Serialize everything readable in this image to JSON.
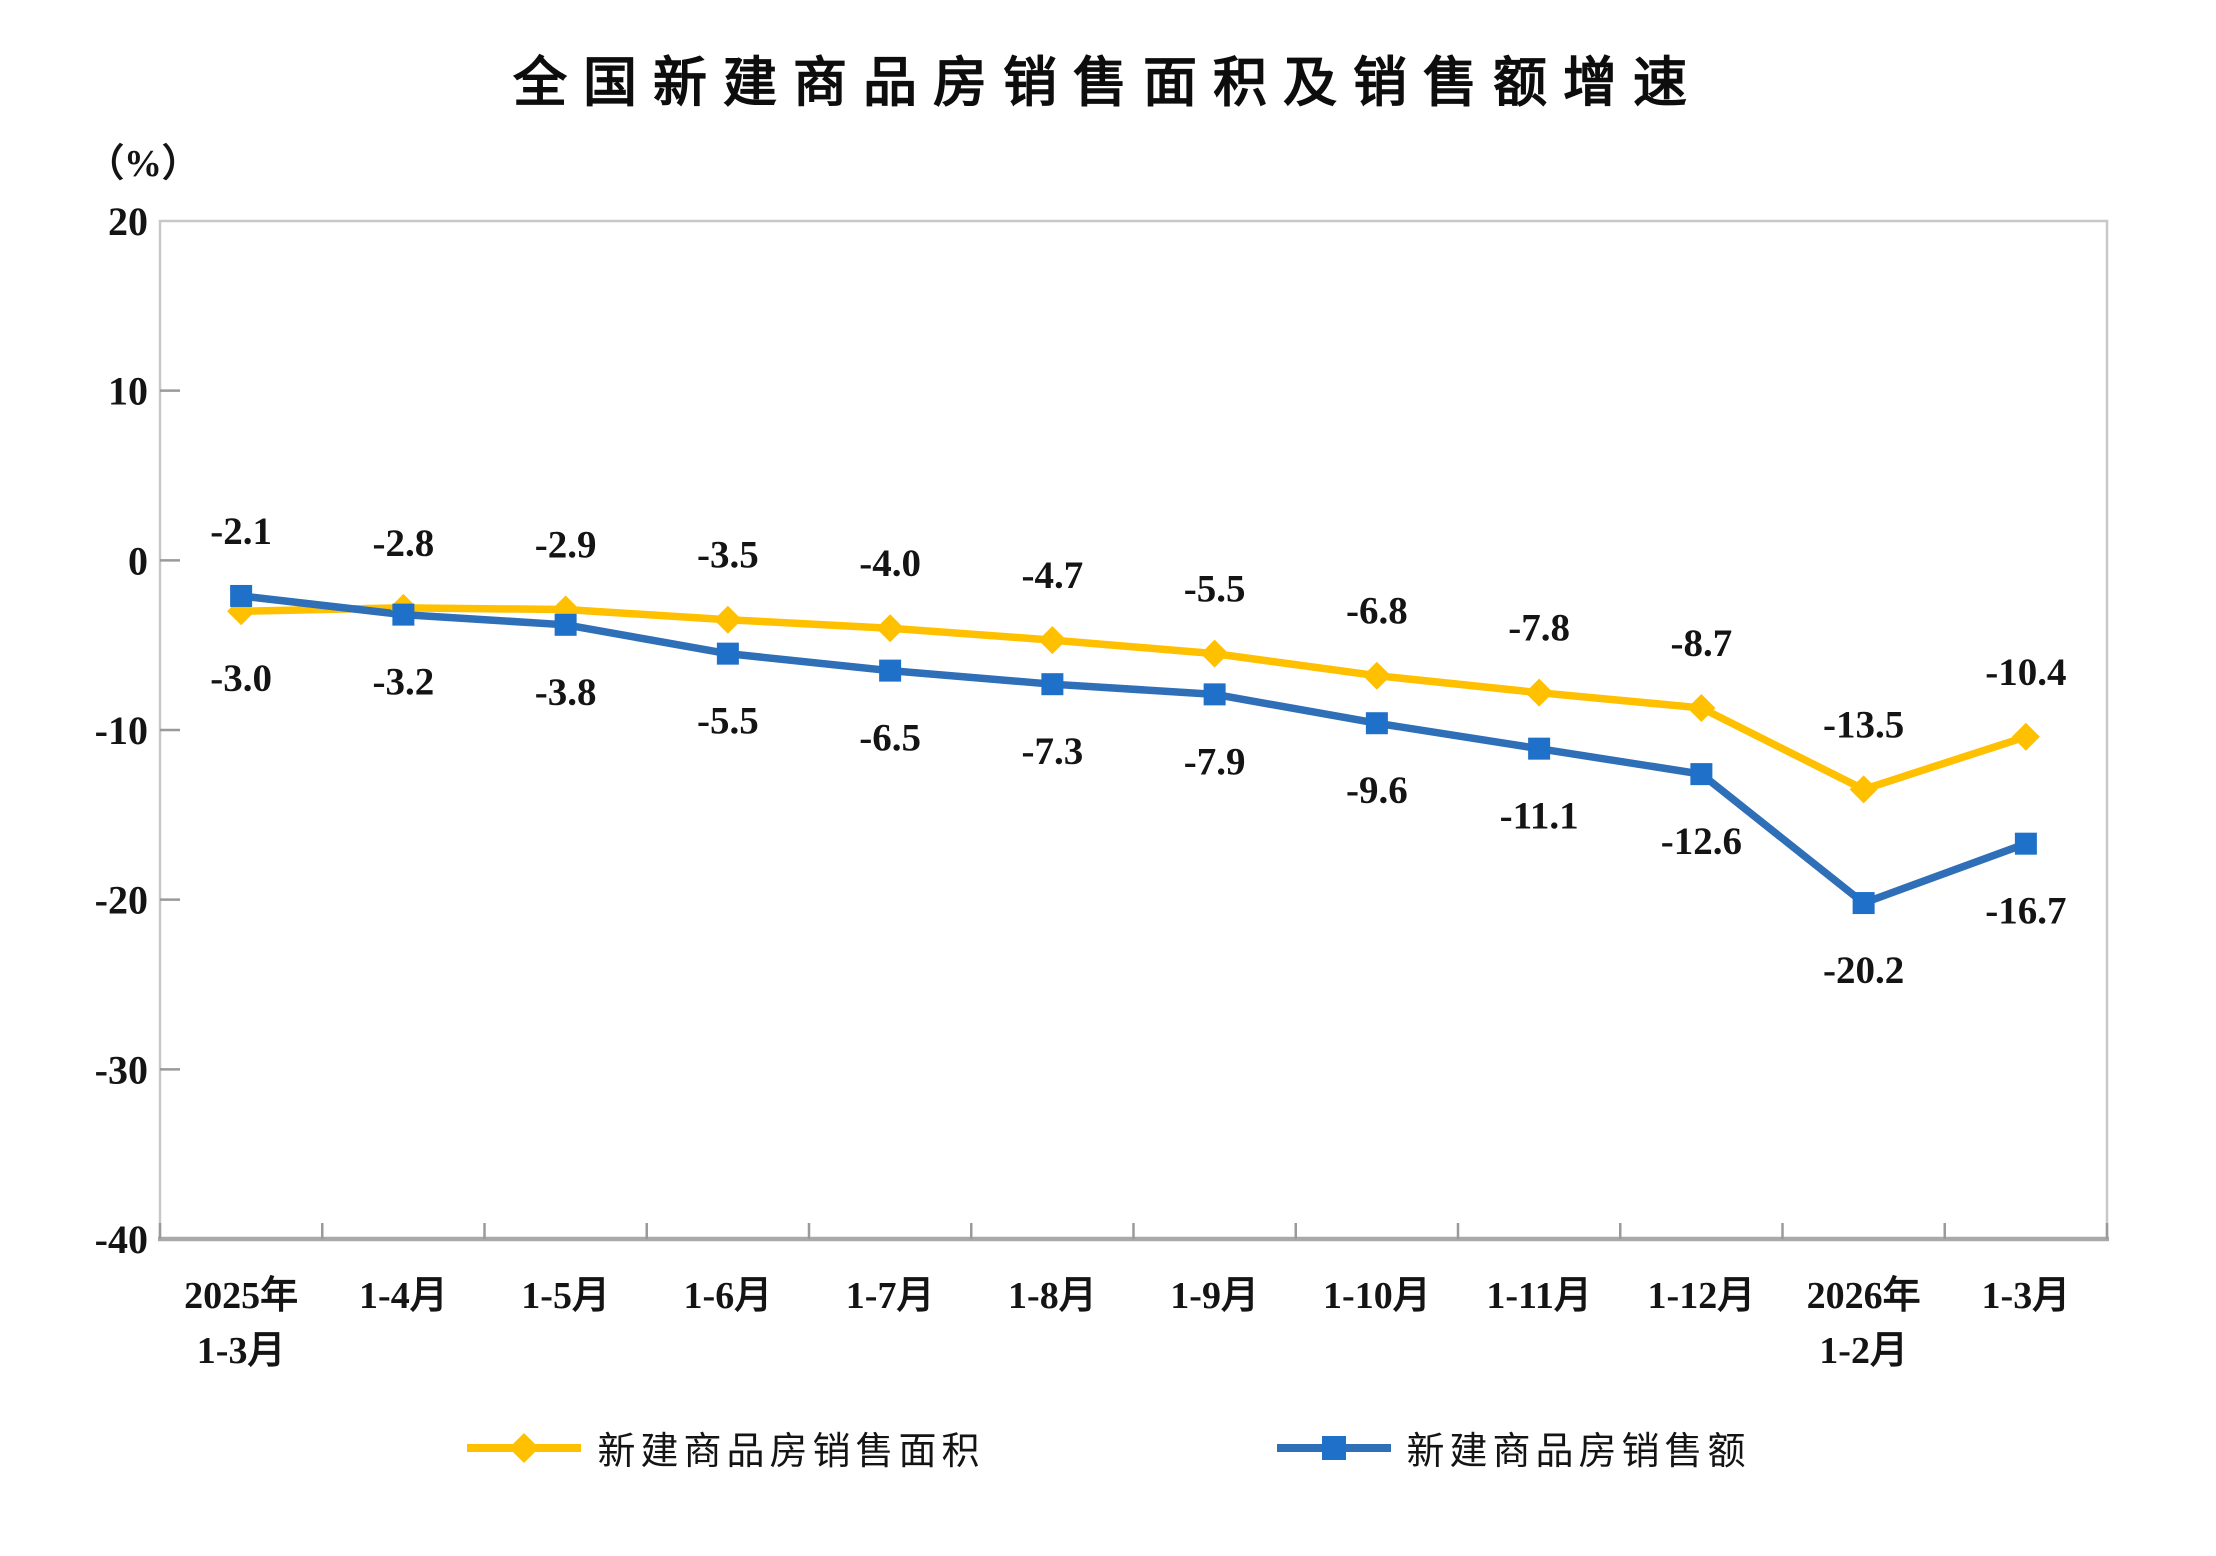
{
  "chart_data": {
    "type": "line",
    "title": "全国新建商品房销售面积及销售额增速",
    "unit_label": "（%）",
    "ylim": [
      -40,
      20
    ],
    "yticks": [
      20,
      10,
      0,
      -10,
      -20,
      -30,
      -40
    ],
    "grid": false,
    "legend_position": "bottom",
    "categories": [
      [
        "2025年",
        "1-3月"
      ],
      [
        "1-4月"
      ],
      [
        "1-5月"
      ],
      [
        "1-6月"
      ],
      [
        "1-7月"
      ],
      [
        "1-8月"
      ],
      [
        "1-9月"
      ],
      [
        "1-10月"
      ],
      [
        "1-11月"
      ],
      [
        "1-12月"
      ],
      [
        "2026年",
        "1-2月"
      ],
      [
        "1-3月"
      ]
    ],
    "series": [
      {
        "name": "新建商品房销售面积",
        "marker": "diamond",
        "line_color": "#FFC000",
        "marker_color": "#FFC000",
        "values": [
          -3.0,
          -2.8,
          -2.9,
          -3.5,
          -4.0,
          -4.7,
          -5.5,
          -6.8,
          -7.8,
          -8.7,
          -13.5,
          -10.4
        ]
      },
      {
        "name": "新建商品房销售额",
        "marker": "square",
        "line_color": "#2E6FB7",
        "marker_color": "#1E70C8",
        "values": [
          -2.1,
          -3.2,
          -3.8,
          -5.5,
          -6.5,
          -7.3,
          -7.9,
          -9.6,
          -11.1,
          -12.6,
          -20.2,
          -16.7
        ]
      }
    ],
    "colors": {
      "plot_border": "#c8c8c8",
      "bottom_axis": "#a9a9a9",
      "tick": "#9a9a9a",
      "text": "#141414"
    }
  }
}
